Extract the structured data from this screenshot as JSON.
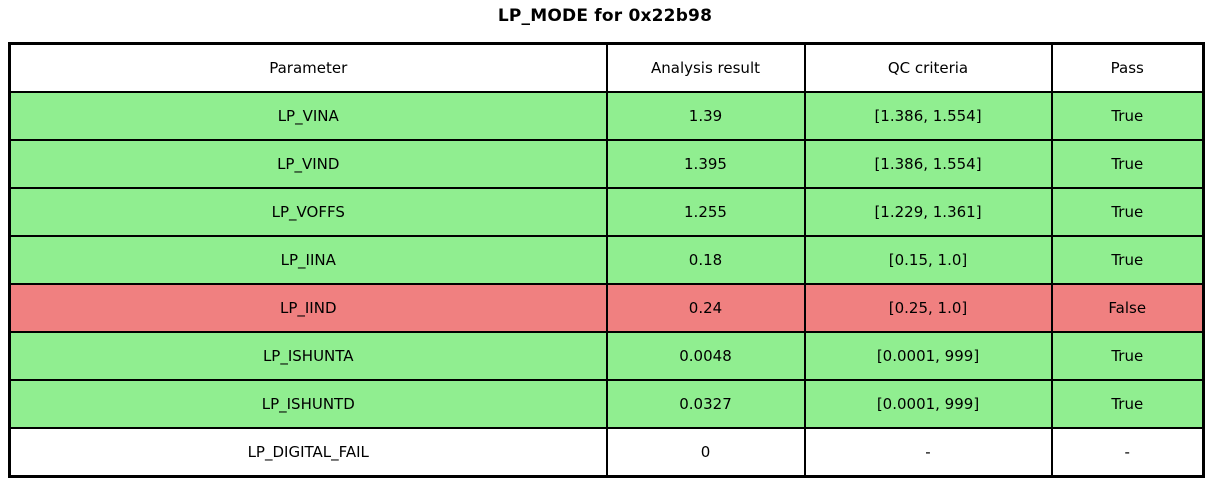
{
  "title": "LP_MODE for 0x22b98",
  "chart_data": {
    "type": "table",
    "title": "LP_MODE for 0x22b98",
    "columns": [
      "Parameter",
      "Analysis result",
      "QC criteria",
      "Pass"
    ],
    "rows": [
      {
        "parameter": "LP_VINA",
        "result": "1.39",
        "criteria": "[1.386, 1.554]",
        "pass": "True",
        "status": "pass"
      },
      {
        "parameter": "LP_VIND",
        "result": "1.395",
        "criteria": "[1.386, 1.554]",
        "pass": "True",
        "status": "pass"
      },
      {
        "parameter": "LP_VOFFS",
        "result": "1.255",
        "criteria": "[1.229, 1.361]",
        "pass": "True",
        "status": "pass"
      },
      {
        "parameter": "LP_IINA",
        "result": "0.18",
        "criteria": "[0.15, 1.0]",
        "pass": "True",
        "status": "pass"
      },
      {
        "parameter": "LP_IIND",
        "result": "0.24",
        "criteria": "[0.25, 1.0]",
        "pass": "False",
        "status": "fail"
      },
      {
        "parameter": "LP_ISHUNTA",
        "result": "0.0048",
        "criteria": "[0.0001, 999]",
        "pass": "True",
        "status": "pass"
      },
      {
        "parameter": "LP_ISHUNTD",
        "result": "0.0327",
        "criteria": "[0.0001, 999]",
        "pass": "True",
        "status": "pass"
      },
      {
        "parameter": "LP_DIGITAL_FAIL",
        "result": "0",
        "criteria": "-",
        "pass": "-",
        "status": "neutral"
      }
    ],
    "layout": {
      "legend": "none",
      "grid": "cell-borders",
      "row_status_colors": {
        "pass": "#90ee90",
        "fail": "#f08080",
        "neutral": "#ffffff"
      },
      "border_color": "#000000",
      "background_color": "#ffffff",
      "text_color": "#000000"
    }
  }
}
